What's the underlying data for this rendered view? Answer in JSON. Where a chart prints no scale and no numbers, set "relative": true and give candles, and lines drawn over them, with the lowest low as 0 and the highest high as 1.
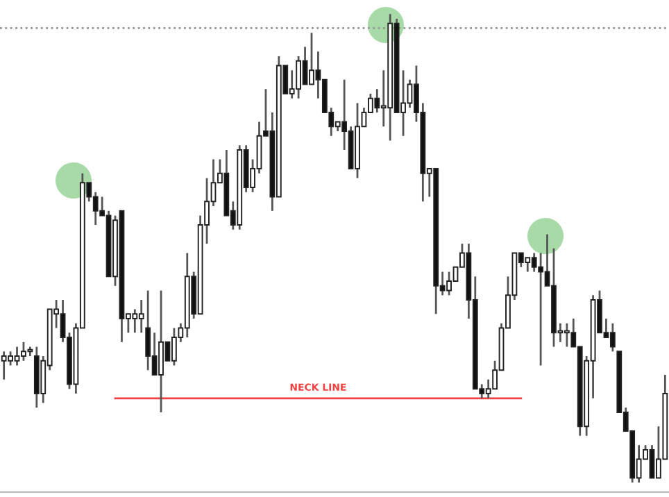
{
  "chart_data": {
    "type": "candlestick",
    "relative": true,
    "categories": [
      null,
      null,
      null,
      null,
      null,
      null,
      null,
      null,
      null,
      null,
      null,
      null,
      null,
      null,
      null,
      null,
      null,
      null,
      null,
      null,
      null,
      null,
      null,
      null,
      null,
      null,
      null,
      null,
      null,
      null,
      null,
      null,
      null,
      null,
      null,
      null,
      null,
      null,
      null,
      null,
      null,
      null,
      null,
      null,
      null,
      null,
      null,
      null,
      null,
      null,
      null,
      null,
      null,
      null,
      null,
      null,
      null,
      null,
      null,
      null,
      null,
      null,
      null,
      null,
      null,
      null,
      null,
      null,
      null,
      null,
      null,
      null,
      null,
      null,
      null,
      null,
      null,
      null,
      null,
      null,
      null,
      null,
      null,
      null,
      null,
      null,
      null,
      null,
      null,
      null,
      null,
      null,
      null,
      null,
      null,
      null,
      null,
      null,
      null,
      null,
      null,
      null
    ],
    "ohlc": [
      [
        0.26,
        0.28,
        0.22,
        0.27
      ],
      [
        0.26,
        0.28,
        0.25,
        0.27
      ],
      [
        0.26,
        0.29,
        0.25,
        0.27
      ],
      [
        0.27,
        0.3,
        0.26,
        0.28
      ],
      [
        0.28,
        0.29,
        0.27,
        0.28
      ],
      [
        0.27,
        0.29,
        0.16,
        0.19
      ],
      [
        0.19,
        0.27,
        0.17,
        0.26
      ],
      [
        0.25,
        0.37,
        0.24,
        0.37
      ],
      [
        0.36,
        0.39,
        0.33,
        0.37
      ],
      [
        0.36,
        0.39,
        0.3,
        0.31
      ],
      [
        0.31,
        0.32,
        0.2,
        0.21
      ],
      [
        0.21,
        0.34,
        0.19,
        0.33
      ],
      [
        0.33,
        0.66,
        0.33,
        0.64
      ],
      [
        0.64,
        0.64,
        0.6,
        0.61
      ],
      [
        0.61,
        0.62,
        0.55,
        0.58
      ],
      [
        0.58,
        0.61,
        0.57,
        0.57
      ],
      [
        0.57,
        0.58,
        0.44,
        0.44
      ],
      [
        0.44,
        0.57,
        0.42,
        0.56
      ],
      [
        0.58,
        0.58,
        0.3,
        0.35
      ],
      [
        0.35,
        0.36,
        0.32,
        0.36
      ],
      [
        0.35,
        0.37,
        0.32,
        0.36
      ],
      [
        0.35,
        0.39,
        0.32,
        0.36
      ],
      [
        0.33,
        0.41,
        0.24,
        0.27
      ],
      [
        0.27,
        0.32,
        0.23,
        0.23
      ],
      [
        0.23,
        0.41,
        0.15,
        0.3
      ],
      [
        0.3,
        0.3,
        0.26,
        0.26
      ],
      [
        0.26,
        0.33,
        0.25,
        0.31
      ],
      [
        0.31,
        0.34,
        0.3,
        0.33
      ],
      [
        0.33,
        0.49,
        0.31,
        0.44
      ],
      [
        0.44,
        0.45,
        0.35,
        0.36
      ],
      [
        0.36,
        0.57,
        0.36,
        0.55
      ],
      [
        0.55,
        0.65,
        0.51,
        0.6
      ],
      [
        0.6,
        0.69,
        0.59,
        0.64
      ],
      [
        0.64,
        0.69,
        0.64,
        0.66
      ],
      [
        0.66,
        0.71,
        0.57,
        0.57
      ],
      [
        0.58,
        0.6,
        0.54,
        0.55
      ],
      [
        0.55,
        0.72,
        0.54,
        0.71
      ],
      [
        0.71,
        0.72,
        0.62,
        0.63
      ],
      [
        0.63,
        0.69,
        0.62,
        0.67
      ],
      [
        0.67,
        0.77,
        0.66,
        0.74
      ],
      [
        0.75,
        0.84,
        0.74,
        0.74
      ],
      [
        0.75,
        0.79,
        0.58,
        0.61
      ],
      [
        0.61,
        0.91,
        0.61,
        0.89
      ],
      [
        0.89,
        0.89,
        0.83,
        0.83
      ],
      [
        0.83,
        0.88,
        0.82,
        0.84
      ],
      [
        0.84,
        0.91,
        0.82,
        0.9
      ],
      [
        0.9,
        0.93,
        0.85,
        0.85
      ],
      [
        0.85,
        0.96,
        0.85,
        0.88
      ],
      [
        0.88,
        0.92,
        0.82,
        0.86
      ],
      [
        0.86,
        0.86,
        0.79,
        0.79
      ],
      [
        0.79,
        0.8,
        0.74,
        0.76
      ],
      [
        0.76,
        0.77,
        0.75,
        0.77
      ],
      [
        0.77,
        0.86,
        0.71,
        0.75
      ],
      [
        0.75,
        0.76,
        0.67,
        0.67
      ],
      [
        0.67,
        0.81,
        0.65,
        0.76
      ],
      [
        0.76,
        0.8,
        0.76,
        0.79
      ],
      [
        0.79,
        0.83,
        0.79,
        0.82
      ],
      [
        0.82,
        0.84,
        0.79,
        0.8
      ],
      [
        0.8,
        0.88,
        0.76,
        0.8
      ],
      [
        0.8,
        1.0,
        0.73,
        0.98
      ],
      [
        0.98,
        0.99,
        0.79,
        0.79
      ],
      [
        0.79,
        0.88,
        0.74,
        0.81
      ],
      [
        0.81,
        0.86,
        0.8,
        0.85
      ],
      [
        0.85,
        0.89,
        0.77,
        0.79
      ],
      [
        0.79,
        0.81,
        0.6,
        0.66
      ],
      [
        0.66,
        0.67,
        0.61,
        0.67
      ],
      [
        0.67,
        0.67,
        0.36,
        0.42
      ],
      [
        0.42,
        0.45,
        0.4,
        0.41
      ],
      [
        0.41,
        0.45,
        0.4,
        0.43
      ],
      [
        0.43,
        0.46,
        0.43,
        0.46
      ],
      [
        0.46,
        0.51,
        0.46,
        0.49
      ],
      [
        0.49,
        0.51,
        0.35,
        0.39
      ],
      [
        0.39,
        0.44,
        0.2,
        0.2
      ],
      [
        0.2,
        0.21,
        0.18,
        0.19
      ],
      [
        0.19,
        0.22,
        0.18,
        0.2
      ],
      [
        0.2,
        0.26,
        0.2,
        0.24
      ],
      [
        0.24,
        0.34,
        0.24,
        0.33
      ],
      [
        0.33,
        0.44,
        0.33,
        0.4
      ],
      [
        0.4,
        0.49,
        0.39,
        0.49
      ],
      [
        0.49,
        0.49,
        0.46,
        0.47
      ],
      [
        0.47,
        0.48,
        0.45,
        0.48
      ],
      [
        0.48,
        0.49,
        0.45,
        0.46
      ],
      [
        0.46,
        0.49,
        0.25,
        0.45
      ],
      [
        0.45,
        0.53,
        0.42,
        0.42
      ],
      [
        0.42,
        0.5,
        0.29,
        0.32
      ],
      [
        0.32,
        0.34,
        0.3,
        0.32
      ],
      [
        0.32,
        0.34,
        0.29,
        0.32
      ],
      [
        0.32,
        0.35,
        0.29,
        0.29
      ],
      [
        0.29,
        0.29,
        0.1,
        0.12
      ],
      [
        0.12,
        0.27,
        0.1,
        0.26
      ],
      [
        0.26,
        0.4,
        0.18,
        0.39
      ],
      [
        0.39,
        0.41,
        0.32,
        0.32
      ],
      [
        0.32,
        0.35,
        0.31,
        0.31
      ],
      [
        0.32,
        0.34,
        0.28,
        0.29
      ],
      [
        0.28,
        0.28,
        0.15,
        0.15
      ],
      [
        0.15,
        0.16,
        0.11,
        0.11
      ],
      [
        0.11,
        0.11,
        0.0,
        0.01
      ],
      [
        0.01,
        0.08,
        0.0,
        0.05
      ],
      [
        0.05,
        0.08,
        0.05,
        0.07
      ],
      [
        0.07,
        0.08,
        0.01,
        0.01
      ],
      [
        0.01,
        0.12,
        0.01,
        0.05
      ],
      [
        0.05,
        0.23,
        0.05,
        0.19
      ]
    ],
    "series": [
      {
        "type": "line",
        "name": "NECK LINE",
        "color": "#f04040",
        "values": [
          null,
          null,
          null,
          null,
          null,
          null,
          null,
          null,
          null,
          null,
          null,
          null,
          null,
          null,
          null,
          null,
          null,
          0.18,
          0.18,
          0.18,
          0.18,
          0.18,
          0.18,
          0.18,
          0.18,
          0.18,
          0.18,
          0.18,
          0.18,
          0.18,
          0.18,
          0.18,
          0.18,
          0.18,
          0.18,
          0.18,
          0.18,
          0.18,
          0.18,
          0.18,
          0.18,
          0.18,
          0.18,
          0.18,
          0.18,
          0.18,
          0.18,
          0.18,
          0.18,
          0.18,
          0.18,
          0.18,
          0.18,
          0.18,
          0.18,
          0.18,
          0.18,
          0.18,
          0.18,
          0.18,
          0.18,
          0.18,
          0.18,
          0.18,
          0.18,
          0.18,
          0.18,
          0.18,
          0.18,
          0.18,
          0.18,
          0.18,
          0.18,
          0.18,
          0.18,
          0.18,
          0.18,
          0.18,
          0.18,
          0.18,
          null,
          null,
          null,
          null,
          null,
          null,
          null,
          null,
          null,
          null,
          null,
          null,
          null,
          null,
          null,
          null,
          null,
          null,
          null,
          null,
          null,
          null
        ]
      }
    ],
    "ref_lines": [
      {
        "axis": "y",
        "value": 0.97,
        "color": "#999999",
        "line_style": "dotted"
      }
    ]
  }
}
